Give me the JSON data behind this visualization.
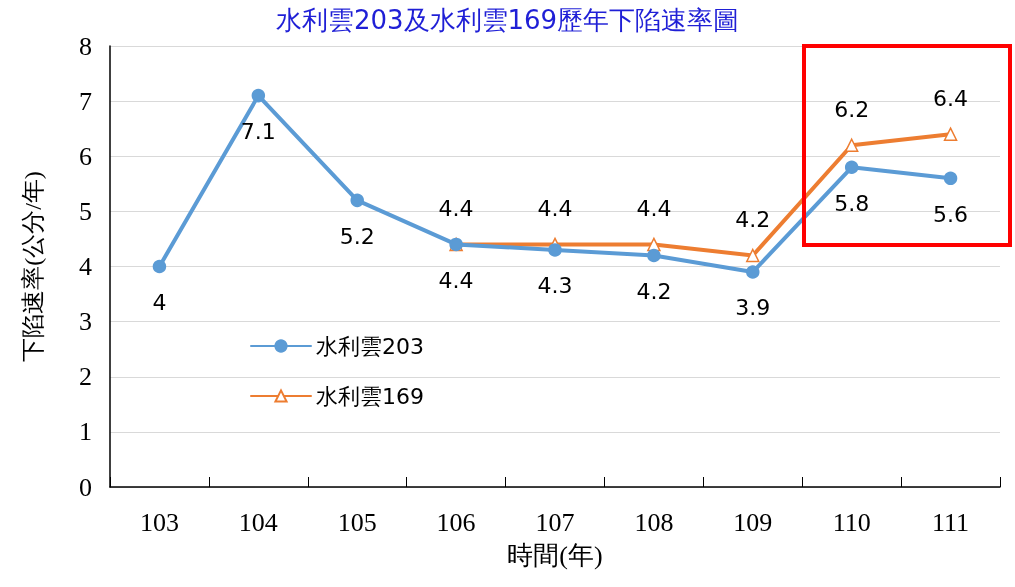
{
  "chart_data": {
    "type": "line",
    "title": "水利雲203及水利雲169歷年下陷速率圖",
    "xlabel": "時間(年)",
    "ylabel": "下陷速率(公分/年)",
    "categories": [
      "103",
      "104",
      "105",
      "106",
      "107",
      "108",
      "109",
      "110",
      "111"
    ],
    "series": [
      {
        "name": "水利雲203",
        "color": "#5b9bd5",
        "marker": "circle",
        "values": [
          4,
          7.1,
          5.2,
          4.4,
          4.3,
          4.2,
          3.9,
          5.8,
          5.6
        ]
      },
      {
        "name": "水利雲169",
        "color": "#ed7d31",
        "marker": "triangle",
        "values": [
          null,
          null,
          null,
          4.4,
          4.4,
          4.4,
          4.2,
          6.2,
          6.4
        ]
      }
    ],
    "ylim": [
      0,
      8
    ],
    "yticks": [
      0,
      1,
      2,
      3,
      4,
      5,
      6,
      7,
      8
    ],
    "grid": "y",
    "legend": "left",
    "data_labels": true
  }
}
